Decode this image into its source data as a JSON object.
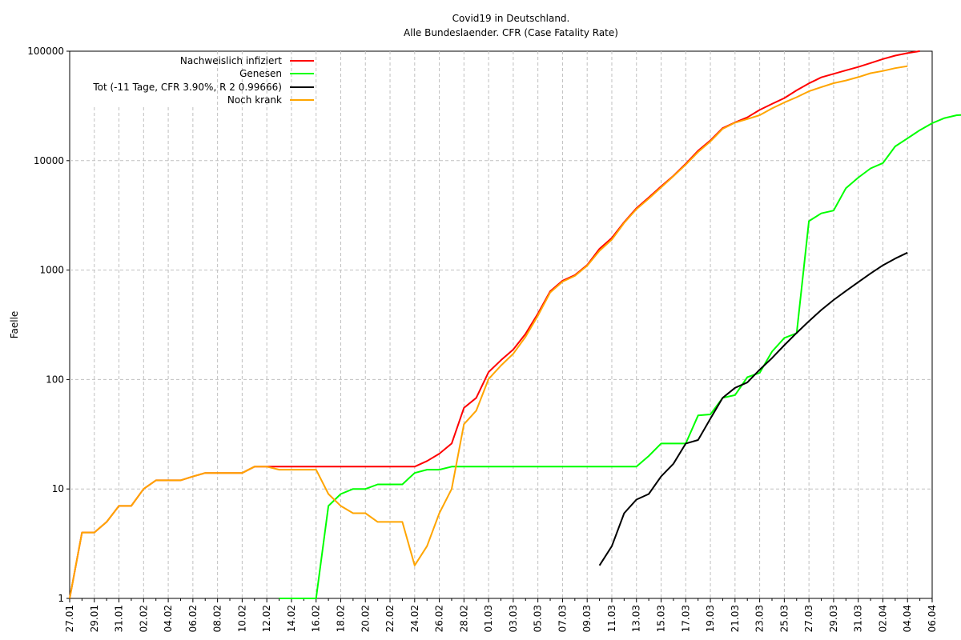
{
  "chart_data": {
    "type": "line",
    "title": "Covid19 in Deutschland.",
    "subtitle": "Alle Bundeslaender. CFR (Case Fatality Rate)",
    "xlabel": "",
    "ylabel": "Faelle",
    "yscale": "log",
    "ylim": [
      1,
      100000
    ],
    "ytick_labels": [
      "1",
      "10",
      "100",
      "1000",
      "10000",
      "100000"
    ],
    "grid": true,
    "legend_position": "top-left",
    "x_dates": [
      "27.01",
      "28.01",
      "29.01",
      "30.01",
      "31.01",
      "01.02",
      "02.02",
      "03.02",
      "04.02",
      "05.02",
      "06.02",
      "07.02",
      "08.02",
      "09.02",
      "10.02",
      "11.02",
      "12.02",
      "13.02",
      "14.02",
      "15.02",
      "16.02",
      "17.02",
      "18.02",
      "19.02",
      "20.02",
      "21.02",
      "22.02",
      "23.02",
      "24.02",
      "25.02",
      "26.02",
      "27.02",
      "28.02",
      "29.02",
      "01.03",
      "02.03",
      "03.03",
      "04.03",
      "05.03",
      "06.03",
      "07.03",
      "08.03",
      "09.03",
      "10.03",
      "11.03",
      "12.03",
      "13.03",
      "14.03",
      "15.03",
      "16.03",
      "17.03",
      "18.03",
      "19.03",
      "20.03",
      "21.03",
      "22.03",
      "23.03",
      "24.03",
      "25.03",
      "26.03",
      "27.03",
      "28.03",
      "29.03",
      "30.03",
      "31.03",
      "01.04",
      "02.04",
      "03.04",
      "04.04",
      "05.04",
      "06.04"
    ],
    "xtick_labels": [
      "27.01",
      "29.01",
      "31.01",
      "02.02",
      "04.02",
      "06.02",
      "08.02",
      "10.02",
      "12.02",
      "14.02",
      "16.02",
      "18.02",
      "20.02",
      "22.02",
      "24.02",
      "26.02",
      "28.02",
      "01.03",
      "03.03",
      "05.03",
      "07.03",
      "09.03",
      "11.03",
      "13.03",
      "15.03",
      "17.03",
      "19.03",
      "21.03",
      "23.03",
      "25.03",
      "27.03",
      "29.03",
      "31.03",
      "02.04",
      "04.04",
      "06.04"
    ],
    "series": [
      {
        "name": "Nachweislich infiziert",
        "color": "#ff0000",
        "start_date": "27.01",
        "values": [
          1,
          4,
          4,
          5,
          7,
          7,
          10,
          12,
          12,
          12,
          13,
          14,
          14,
          14,
          14,
          16,
          16,
          16,
          16,
          16,
          16,
          16,
          16,
          16,
          16,
          16,
          16,
          16,
          16,
          18,
          21,
          26,
          55,
          68,
          117,
          150,
          188,
          262,
          400,
          640,
          800,
          900,
          1112,
          1565,
          1966,
          2745,
          3675,
          4599,
          5813,
          7272,
          9367,
          12327,
          15320,
          19848,
          22364,
          24873,
          29056,
          32991,
          37323,
          43938,
          50871,
          57695,
          62095,
          66885,
          71808,
          77981,
          84794,
          91159,
          96092,
          100123
        ]
      },
      {
        "name": "Genesen",
        "color": "#00ff00",
        "start_date": "13.02",
        "values": [
          1,
          1,
          1,
          1,
          7,
          9,
          10,
          10,
          11,
          11,
          11,
          14,
          15,
          15,
          16,
          16,
          16,
          16,
          16,
          16,
          16,
          16,
          16,
          16,
          16,
          16,
          16,
          16,
          16,
          16,
          20,
          26,
          26,
          26,
          47,
          48,
          68,
          72,
          105,
          115,
          180,
          240,
          265,
          2800,
          3300,
          3500,
          5600,
          7000,
          8500,
          9500,
          13500,
          16000,
          19000,
          22000,
          24500,
          26000,
          26400
        ]
      },
      {
        "name": "Tot (-11 Tage, CFR 3.90%, R 2 0.99666)",
        "color": "#000000",
        "start_date": "10.03",
        "values": [
          2,
          3,
          6,
          8,
          9,
          13,
          17,
          26,
          28,
          44,
          68,
          84,
          94,
          123,
          157,
          206,
          267,
          341,
          432,
          533,
          645,
          775,
          931,
          1107,
          1275,
          1444
        ]
      },
      {
        "name": "Noch krank",
        "color": "#ffa500",
        "start_date": "27.01",
        "values": [
          1,
          4,
          4,
          5,
          7,
          7,
          10,
          12,
          12,
          12,
          13,
          14,
          14,
          14,
          14,
          16,
          16,
          15,
          15,
          15,
          15,
          9,
          7,
          6,
          6,
          5,
          5,
          5,
          2,
          3,
          6,
          10,
          39,
          52,
          101,
          134,
          172,
          246,
          384,
          624,
          784,
          884,
          1096,
          1500,
          1900,
          2700,
          3600,
          4500,
          5700,
          7200,
          9200,
          12000,
          15000,
          19500,
          22200,
          24000,
          26000,
          30000,
          34000,
          38000,
          43000,
          47000,
          51000,
          54000,
          58000,
          63000,
          66000,
          70000,
          73000
        ]
      }
    ]
  }
}
